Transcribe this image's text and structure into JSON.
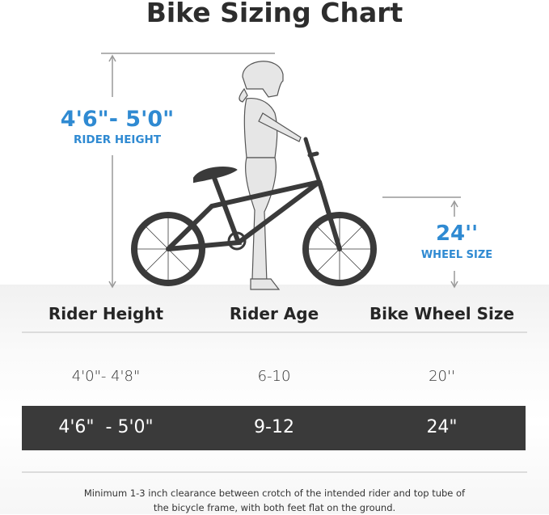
{
  "title": "Bike Sizing Chart",
  "illustration": {
    "rider_height_value": "4'6\"- 5'0\"",
    "rider_height_label": "RIDER HEIGHT",
    "wheel_size_value": "24''",
    "wheel_size_label": "WHEEL SIZE",
    "accent_color": "#2f8ad2"
  },
  "table": {
    "headers": [
      "Rider Height",
      "Rider Age",
      "Bike Wheel Size"
    ],
    "rows": [
      [
        "4'0\"- 4'8\"",
        "6-10",
        "20''"
      ],
      [
        "4'6\"  - 5'0\"",
        "9-12",
        "24\""
      ]
    ],
    "highlighted_row": 1,
    "highlight_color": "#3a3a3a"
  },
  "note": "Minimum 1-3 inch clearance between crotch of the intended rider and top tube of the bicycle frame, with both feet flat on the ground."
}
